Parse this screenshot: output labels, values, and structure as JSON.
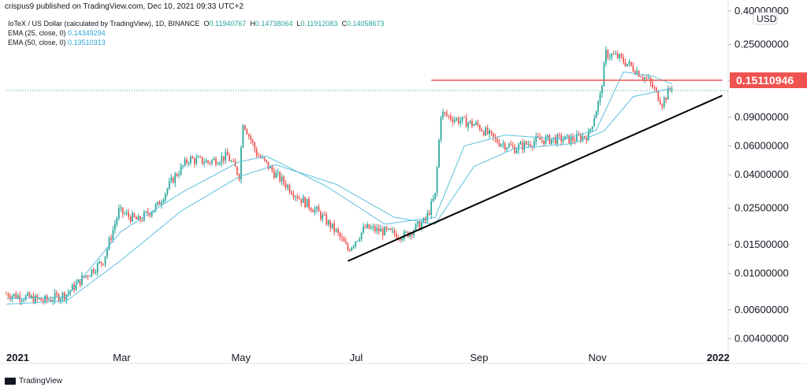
{
  "header": {
    "published_by": "crispus9 published on TradingView.com, Dec 10, 2021 09:33 UTC+2"
  },
  "legend": {
    "symbol": "IoTeX / US Dollar (calculated by TradingView), 1D, BINANCE",
    "ohlc": [
      {
        "label": "O",
        "value": "0.11940767"
      },
      {
        "label": "H",
        "value": "0.14738064"
      },
      {
        "label": "L",
        "value": "0.11912083"
      },
      {
        "label": "C",
        "value": "0.14058673"
      }
    ],
    "ema25": {
      "label": "EMA (25, close, 0)",
      "value": "0.14349294"
    },
    "ema50": {
      "label": "EMA (50, close, 0)",
      "value": "0.13510313"
    }
  },
  "footer": {
    "brand": "TradingView"
  },
  "colors": {
    "up": "#26a69a",
    "down": "#ef5350",
    "ema": "#5bc0de",
    "resistance": "#ef5350",
    "trendline": "#000000",
    "price_label_bg": "#ef5350"
  },
  "chart_data": {
    "type": "candlestick",
    "scale": "log",
    "currency": "USD",
    "ylim": [
      0.0036,
      0.4
    ],
    "y_ticks": [
      "0.40000000",
      "0.25000000",
      "0.15000000",
      "0.09000000",
      "0.06000000",
      "0.04000000",
      "0.02500000",
      "0.01500000",
      "0.01000000",
      "0.00600000",
      "0.00400000"
    ],
    "x_ticks": [
      "2021",
      "Mar",
      "May",
      "Jul",
      "Sep",
      "Nov",
      "2022"
    ],
    "last_price_label": "0.15110946",
    "resistance_level": 0.1511,
    "close_series": [
      [
        "2021-01-01",
        0.0075
      ],
      [
        "2021-01-10",
        0.0072
      ],
      [
        "2021-01-20",
        0.0068
      ],
      [
        "2021-02-01",
        0.0075
      ],
      [
        "2021-02-10",
        0.0095
      ],
      [
        "2021-02-20",
        0.012
      ],
      [
        "2021-02-28",
        0.024
      ],
      [
        "2021-03-10",
        0.021
      ],
      [
        "2021-03-20",
        0.026
      ],
      [
        "2021-03-28",
        0.038
      ],
      [
        "2021-04-05",
        0.05
      ],
      [
        "2021-04-15",
        0.048
      ],
      [
        "2021-04-25",
        0.052
      ],
      [
        "2021-05-01",
        0.04
      ],
      [
        "2021-05-03",
        0.085
      ],
      [
        "2021-05-10",
        0.054
      ],
      [
        "2021-05-20",
        0.04
      ],
      [
        "2021-06-01",
        0.029
      ],
      [
        "2021-06-10",
        0.024
      ],
      [
        "2021-06-20",
        0.018
      ],
      [
        "2021-06-26",
        0.014
      ],
      [
        "2021-07-05",
        0.019
      ],
      [
        "2021-07-15",
        0.018
      ],
      [
        "2021-07-25",
        0.017
      ],
      [
        "2021-08-05",
        0.021
      ],
      [
        "2021-08-10",
        0.03
      ],
      [
        "2021-08-13",
        0.095
      ],
      [
        "2021-08-20",
        0.088
      ],
      [
        "2021-09-01",
        0.08
      ],
      [
        "2021-09-10",
        0.065
      ],
      [
        "2021-09-20",
        0.058
      ],
      [
        "2021-10-01",
        0.065
      ],
      [
        "2021-10-10",
        0.066
      ],
      [
        "2021-10-20",
        0.066
      ],
      [
        "2021-10-28",
        0.07
      ],
      [
        "2021-11-03",
        0.12
      ],
      [
        "2021-11-06",
        0.22
      ],
      [
        "2021-11-12",
        0.21
      ],
      [
        "2021-11-20",
        0.18
      ],
      [
        "2021-11-28",
        0.15
      ],
      [
        "2021-12-05",
        0.11
      ],
      [
        "2021-12-10",
        0.1406
      ]
    ],
    "ema25_series": [
      [
        "2021-01-01",
        0.007
      ],
      [
        "2021-02-01",
        0.0072
      ],
      [
        "2021-03-01",
        0.018
      ],
      [
        "2021-04-01",
        0.031
      ],
      [
        "2021-05-01",
        0.048
      ],
      [
        "2021-05-15",
        0.052
      ],
      [
        "2021-06-15",
        0.034
      ],
      [
        "2021-07-15",
        0.02
      ],
      [
        "2021-08-10",
        0.022
      ],
      [
        "2021-08-25",
        0.06
      ],
      [
        "2021-09-15",
        0.07
      ],
      [
        "2021-10-15",
        0.066
      ],
      [
        "2021-11-01",
        0.075
      ],
      [
        "2021-11-15",
        0.17
      ],
      [
        "2021-11-30",
        0.16
      ],
      [
        "2021-12-10",
        0.1435
      ]
    ],
    "ema50_series": [
      [
        "2021-01-01",
        0.0065
      ],
      [
        "2021-02-01",
        0.0068
      ],
      [
        "2021-03-01",
        0.012
      ],
      [
        "2021-04-01",
        0.024
      ],
      [
        "2021-05-01",
        0.039
      ],
      [
        "2021-05-20",
        0.046
      ],
      [
        "2021-06-20",
        0.035
      ],
      [
        "2021-07-20",
        0.022
      ],
      [
        "2021-08-10",
        0.02
      ],
      [
        "2021-08-30",
        0.045
      ],
      [
        "2021-09-20",
        0.058
      ],
      [
        "2021-10-20",
        0.062
      ],
      [
        "2021-11-05",
        0.074
      ],
      [
        "2021-11-20",
        0.12
      ],
      [
        "2021-12-10",
        0.1351
      ]
    ],
    "support_trendline": [
      [
        "2021-06-26",
        0.0119
      ],
      [
        "2022-01-05",
        0.122
      ]
    ],
    "resistance_line": [
      [
        "2021-08-08",
        0.1511
      ],
      [
        "2022-01-05",
        0.1511
      ]
    ]
  }
}
